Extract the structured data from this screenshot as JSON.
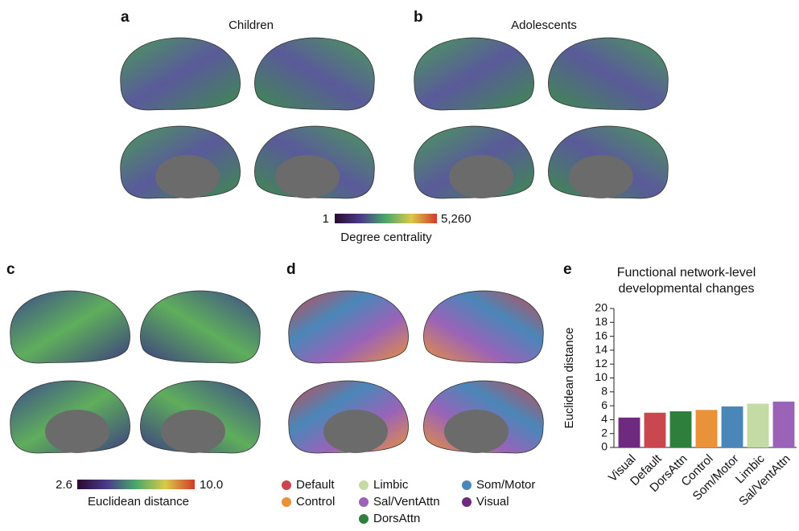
{
  "panels": {
    "a": {
      "label": "a",
      "title": "Children"
    },
    "b": {
      "label": "b",
      "title": "Adolescents"
    },
    "c": {
      "label": "c"
    },
    "d": {
      "label": "d"
    },
    "e": {
      "label": "e"
    }
  },
  "colorbar_ab": {
    "min_label": "1",
    "max_label": "5,260",
    "title": "Degree centrality"
  },
  "colorbar_c": {
    "min_label": "2.6",
    "max_label": "10.0",
    "title": "Euclidean distance"
  },
  "legend_d": [
    {
      "name": "Default",
      "color": "#c9474f"
    },
    {
      "name": "Control",
      "color": "#e8923a"
    },
    {
      "name": "Limbic",
      "color": "#c5dba6"
    },
    {
      "name": "Sal/VentAttn",
      "color": "#9a63b8"
    },
    {
      "name": "DorsAttn",
      "color": "#2f7f3c"
    },
    {
      "name": "Som/Motor",
      "color": "#4a87b8"
    },
    {
      "name": "Visual",
      "color": "#6d2a7e"
    }
  ],
  "chart_data": {
    "type": "bar",
    "title": "Functional network-level developmental changes",
    "y_label": "Euclidean distance",
    "categories": [
      "Visual",
      "Default",
      "DorsAttn",
      "Control",
      "Som/Motor",
      "Limbic",
      "Sal/VentAttn"
    ],
    "values": [
      4.3,
      5.0,
      5.2,
      5.4,
      5.9,
      6.3,
      6.6
    ],
    "colors": [
      "#6d2a7e",
      "#c9474f",
      "#2f7f3c",
      "#e8923a",
      "#4a87b8",
      "#c5dba6",
      "#9a63b8"
    ],
    "ylim": [
      0,
      21
    ],
    "yticks": [
      0,
      2,
      4,
      6,
      8,
      10,
      12,
      14,
      16,
      18,
      20
    ]
  }
}
